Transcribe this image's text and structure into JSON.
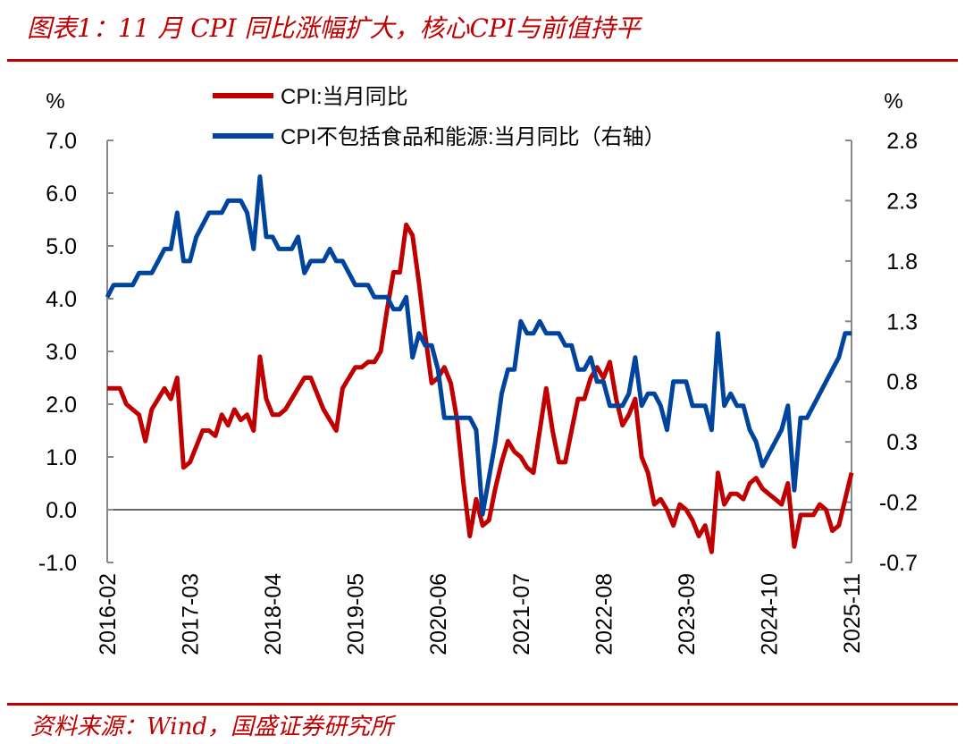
{
  "title": "图表1：11 月 CPI 同比涨幅扩大，核心CPI与前值持平",
  "source": "资料来源：Wind，国盛证券研究所",
  "colors": {
    "accent": "#c00000",
    "cpi": "#c00000",
    "core": "#00449e"
  },
  "chart_data": {
    "type": "line",
    "left_unit": "%",
    "right_unit": "%",
    "ylim_left": [
      -1.0,
      7.0
    ],
    "ylim_right": [
      -0.7,
      2.8
    ],
    "yticks_left": [
      "7.0",
      "6.0",
      "5.0",
      "4.0",
      "3.0",
      "2.0",
      "1.0",
      "0.0",
      "-1.0"
    ],
    "yticks_right": [
      "2.8",
      "2.3",
      "1.8",
      "1.3",
      "0.8",
      "0.3",
      "-0.2",
      "-0.7"
    ],
    "xticks": [
      "2016-02",
      "2017-03",
      "2018-04",
      "2019-05",
      "2020-06",
      "2021-07",
      "2022-08",
      "2023-09",
      "2024-10",
      "2025-11"
    ],
    "x_start": "2016-02",
    "x_end": "2025-11",
    "grid": false,
    "legend": "top",
    "series": [
      {
        "name": "CPI:当月同比",
        "axis": "left",
        "values": [
          2.3,
          2.3,
          2.3,
          2.0,
          1.9,
          1.8,
          1.3,
          1.9,
          2.1,
          2.3,
          2.1,
          2.5,
          0.8,
          0.9,
          1.2,
          1.5,
          1.5,
          1.4,
          1.8,
          1.6,
          1.9,
          1.7,
          1.8,
          1.5,
          2.9,
          2.1,
          1.8,
          1.8,
          1.9,
          2.1,
          2.3,
          2.5,
          2.5,
          2.2,
          1.9,
          1.7,
          1.5,
          2.3,
          2.5,
          2.7,
          2.7,
          2.8,
          2.8,
          3.0,
          3.8,
          4.5,
          4.5,
          5.4,
          5.2,
          4.3,
          3.3,
          2.4,
          2.5,
          2.7,
          2.4,
          1.7,
          0.5,
          -0.5,
          0.2,
          -0.3,
          -0.2,
          0.4,
          0.9,
          1.3,
          1.1,
          1.0,
          0.8,
          0.7,
          1.5,
          2.3,
          1.5,
          0.9,
          0.9,
          1.5,
          2.1,
          2.1,
          2.5,
          2.7,
          2.5,
          2.8,
          2.1,
          1.6,
          1.8,
          2.1,
          1.0,
          0.7,
          0.1,
          0.2,
          0.0,
          -0.3,
          0.1,
          0.0,
          -0.2,
          -0.5,
          -0.3,
          -0.8,
          0.7,
          0.1,
          0.3,
          0.3,
          0.2,
          0.5,
          0.6,
          0.4,
          0.3,
          0.2,
          0.1,
          0.5,
          -0.7,
          -0.1,
          -0.1,
          -0.1,
          0.1,
          0.0,
          -0.4,
          -0.3,
          0.2,
          0.7
        ]
      },
      {
        "name": "CPI不包括食品和能源:当月同比（右轴）",
        "axis": "right",
        "values": [
          1.5,
          1.6,
          1.6,
          1.6,
          1.6,
          1.7,
          1.7,
          1.7,
          1.8,
          1.9,
          1.9,
          2.2,
          1.8,
          1.8,
          2.0,
          2.1,
          2.2,
          2.2,
          2.2,
          2.3,
          2.3,
          2.3,
          2.2,
          1.9,
          2.5,
          2.0,
          2.0,
          1.9,
          1.9,
          1.9,
          2.0,
          1.7,
          1.8,
          1.8,
          1.8,
          1.9,
          1.8,
          1.8,
          1.7,
          1.6,
          1.6,
          1.6,
          1.5,
          1.5,
          1.5,
          1.4,
          1.4,
          1.5,
          1.0,
          1.2,
          1.1,
          1.1,
          0.9,
          0.5,
          0.5,
          0.5,
          0.5,
          0.5,
          0.4,
          -0.3,
          0.0,
          0.3,
          0.7,
          0.9,
          0.9,
          1.3,
          1.2,
          1.2,
          1.3,
          1.2,
          1.2,
          1.2,
          1.1,
          1.1,
          0.9,
          0.9,
          1.0,
          0.8,
          0.8,
          0.6,
          0.6,
          0.6,
          0.7,
          1.0,
          0.6,
          0.7,
          0.7,
          0.6,
          0.4,
          0.8,
          0.8,
          0.8,
          0.6,
          0.6,
          0.6,
          0.4,
          1.2,
          0.6,
          0.7,
          0.6,
          0.6,
          0.4,
          0.3,
          0.1,
          0.2,
          0.3,
          0.4,
          0.6,
          -0.1,
          0.5,
          0.5,
          0.6,
          0.7,
          0.8,
          0.9,
          1.0,
          1.2,
          1.2
        ]
      }
    ]
  }
}
